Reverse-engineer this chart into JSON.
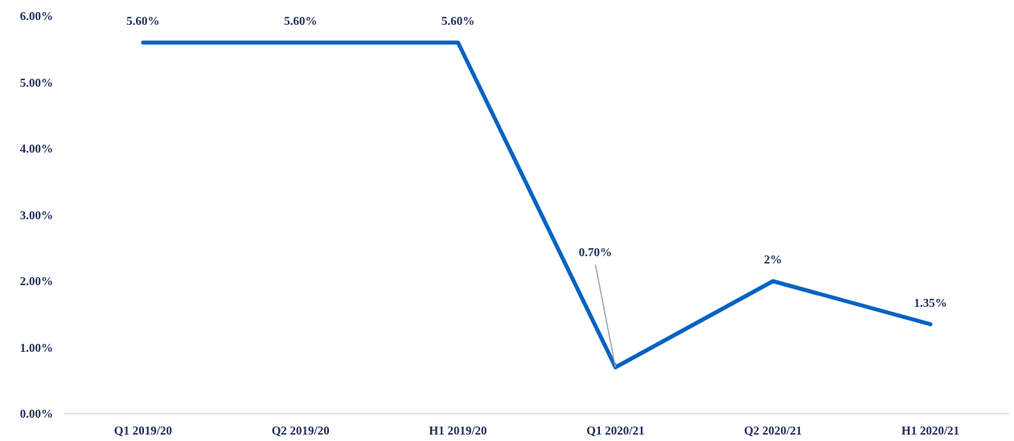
{
  "chart_data": {
    "type": "line",
    "categories": [
      "Q1 2019/20",
      "Q2 2019/20",
      "H1 2019/20",
      "Q1 2020/21",
      "Q2 2020/21",
      "H1 2020/21"
    ],
    "series": [
      {
        "color": "#0563c1",
        "values": [
          5.6,
          5.6,
          5.6,
          0.7,
          2,
          1.35
        ],
        "value_labels": [
          "5.60%",
          "5.60%",
          "5.60%",
          "0.70%",
          "2%",
          "1.35%"
        ]
      }
    ],
    "ylim": [
      0,
      6
    ],
    "yticks": [
      {
        "value": 0,
        "label": "0.00%"
      },
      {
        "value": 1,
        "label": "1.00%"
      },
      {
        "value": 2,
        "label": "2.00%"
      },
      {
        "value": 3,
        "label": "3.00%"
      },
      {
        "value": 4,
        "label": "4.00%"
      },
      {
        "value": 5,
        "label": "5.00%"
      },
      {
        "value": 6,
        "label": "6.00%"
      }
    ],
    "grid": false,
    "marker": "none",
    "line_style": "solid"
  }
}
